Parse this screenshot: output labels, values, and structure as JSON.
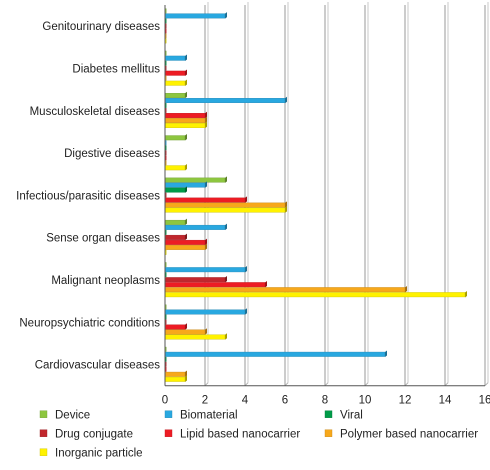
{
  "chart_data": {
    "type": "bar",
    "orientation": "horizontal",
    "title": "",
    "xlabel": "",
    "ylabel": "",
    "xlim": [
      0,
      16
    ],
    "x_ticks": [
      0,
      2,
      4,
      6,
      8,
      10,
      12,
      14,
      16
    ],
    "grid": "vertical",
    "legend_position": "bottom",
    "categories": [
      "Genitourinary diseases",
      "Diabetes mellitus",
      "Musculoskeletal diseases",
      "Digestive diseases",
      "Infectious/parasitic diseases",
      "Sense organ diseases",
      "Malignant neoplasms",
      "Neuropsychiatric conditions",
      "Cardiovascular diseases"
    ],
    "series": [
      {
        "name": "Device",
        "color": "#8dc63f",
        "values": [
          0,
          0,
          1,
          1,
          3,
          1,
          0,
          0,
          0
        ]
      },
      {
        "name": "Biomaterial",
        "color": "#29a8e0",
        "values": [
          3,
          1,
          6,
          0,
          2,
          3,
          4,
          4,
          11
        ]
      },
      {
        "name": "Viral",
        "color": "#009b48",
        "values": [
          0,
          0,
          0,
          0,
          1,
          0,
          0,
          0,
          0
        ]
      },
      {
        "name": "Drug conjugate",
        "color": "#c1272d",
        "values": [
          0,
          0,
          0,
          0,
          0,
          1,
          3,
          0,
          0
        ]
      },
      {
        "name": "Lipid based nanocarrier",
        "color": "#ed1c24",
        "values": [
          0,
          1,
          2,
          0,
          4,
          2,
          5,
          1,
          0
        ]
      },
      {
        "name": "Polymer based nanocarrier",
        "color": "#f7a81b",
        "values": [
          0,
          0,
          2,
          0,
          6,
          2,
          12,
          2,
          1
        ]
      },
      {
        "name": "Inorganic particle",
        "color": "#fff200",
        "values": [
          0,
          1,
          2,
          1,
          6,
          0,
          15,
          3,
          1
        ]
      }
    ]
  }
}
